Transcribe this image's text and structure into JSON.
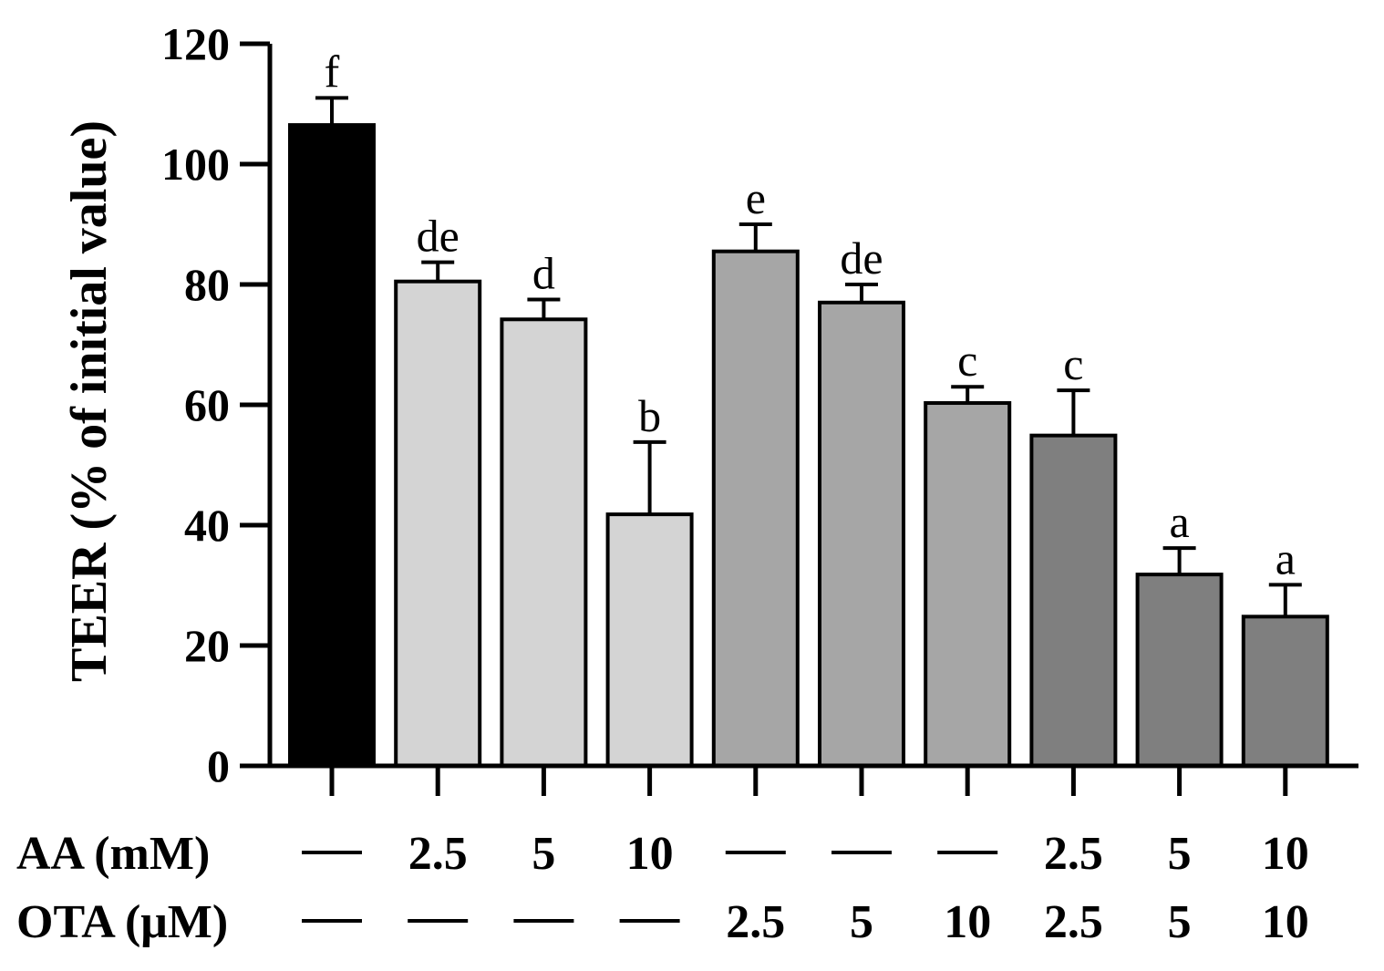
{
  "chart_data": {
    "type": "bar",
    "title": "",
    "xlabel": "",
    "ylabel": "TEER (% of initial value)",
    "ylim": [
      0,
      120
    ],
    "yticks": [
      0,
      20,
      40,
      60,
      80,
      100,
      120
    ],
    "grid": false,
    "legend": "none",
    "values": [
      106.5,
      80.5,
      74.2,
      41.8,
      85.5,
      77.0,
      60.3,
      54.9,
      31.8,
      24.8
    ],
    "errors": [
      4.5,
      3.2,
      3.3,
      12.0,
      4.5,
      3.0,
      2.7,
      7.5,
      4.4,
      5.3
    ],
    "significance": [
      "f",
      "de",
      "d",
      "b",
      "e",
      "de",
      "c",
      "c",
      "a",
      "a"
    ],
    "colors": [
      "#000000",
      "#d4d4d4",
      "#d4d4d4",
      "#d4d4d4",
      "#a6a6a6",
      "#a6a6a6",
      "#a6a6a6",
      "#7f7f7f",
      "#7f7f7f",
      "#7f7f7f"
    ],
    "conditions": [
      {
        "label": "AA (mM)",
        "values": [
          "—",
          "2.5",
          "5",
          "10",
          "—",
          "—",
          "—",
          "2.5",
          "5",
          "10"
        ]
      },
      {
        "label": "OTA (μM)",
        "values": [
          "—",
          "—",
          "—",
          "—",
          "2.5",
          "5",
          "10",
          "2.5",
          "5",
          "10"
        ]
      }
    ]
  }
}
